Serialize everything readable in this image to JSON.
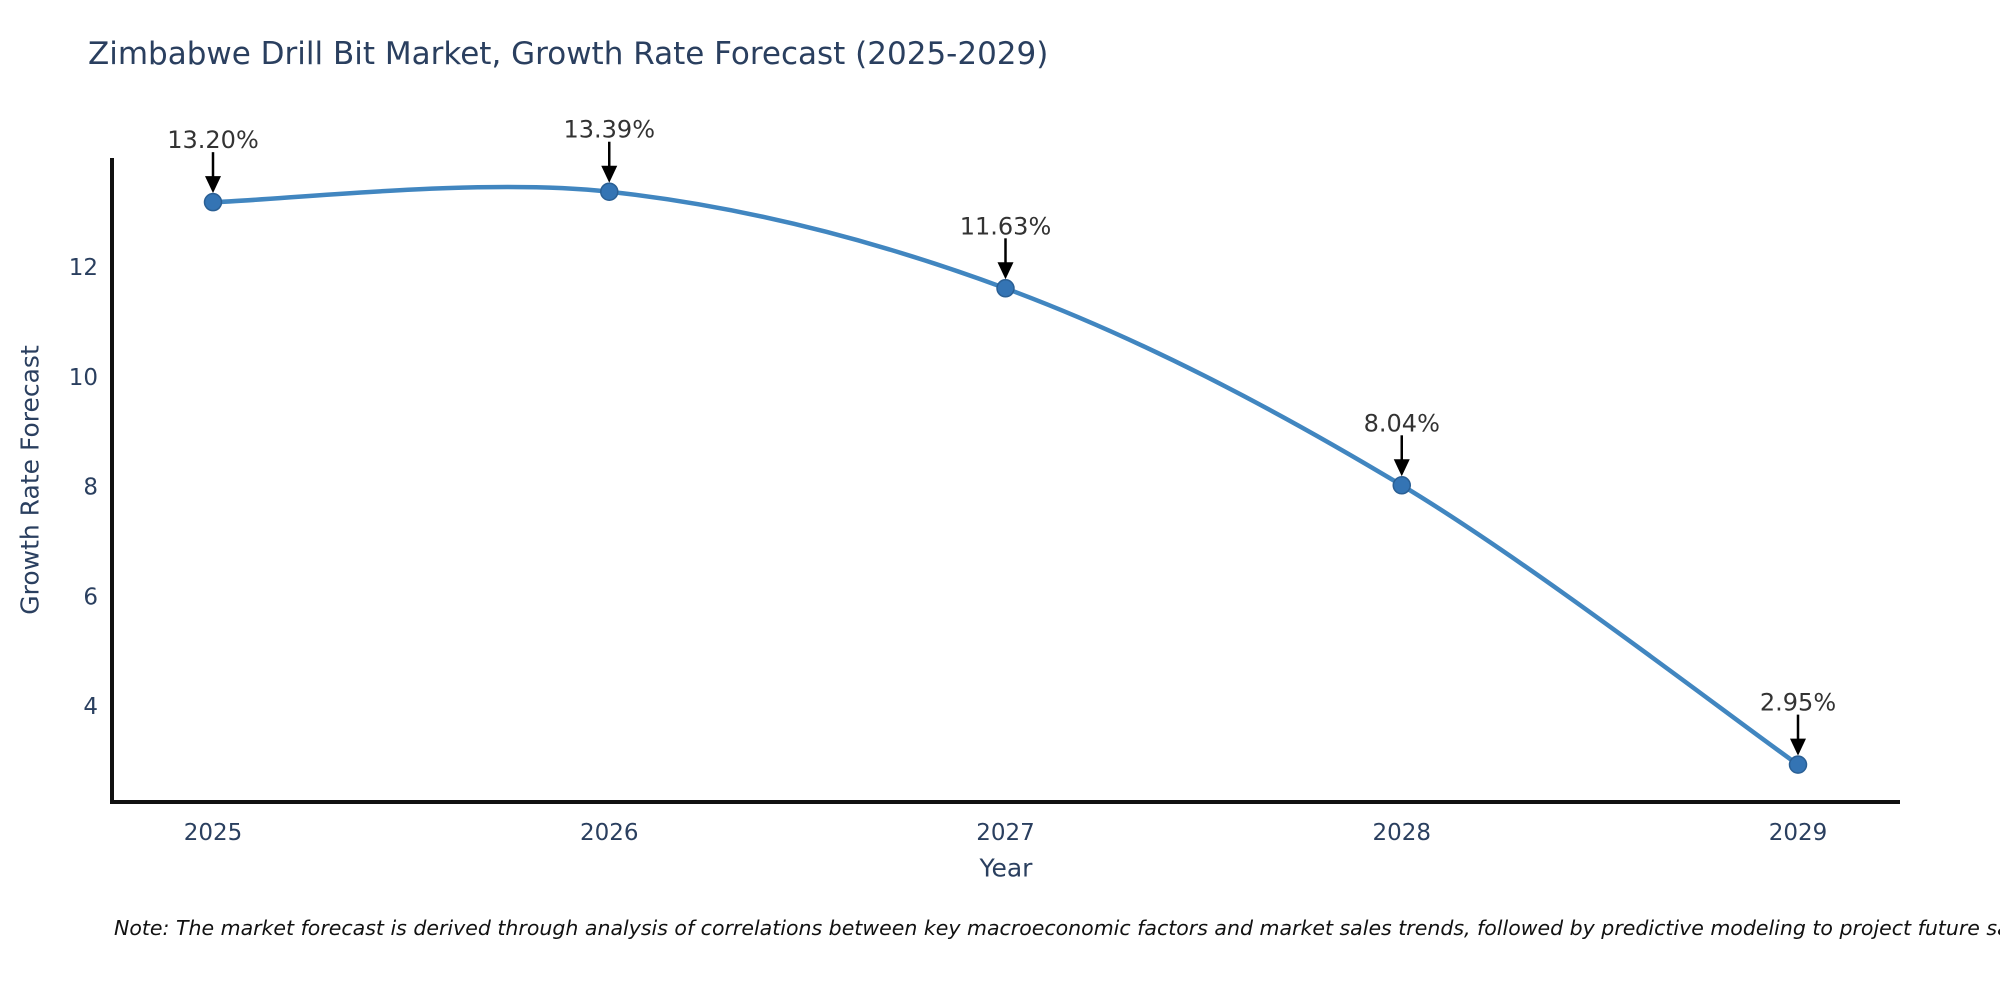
{
  "title": "Zimbabwe Drill Bit Market, Growth Rate Forecast (2025-2029)",
  "note": "Note: The market forecast is derived through analysis of correlations between key macroeconomic factors and market sales trends, followed by predictive modeling to project future sales",
  "chart_data": {
    "type": "line",
    "line_shape": "spline",
    "title": "Zimbabwe Drill Bit Market, Growth Rate Forecast (2025-2029)",
    "xlabel": "Year",
    "ylabel": "Growth Rate Forecast",
    "x": [
      2025,
      2026,
      2027,
      2028,
      2029
    ],
    "series": [
      {
        "name": "Growth Rate Forecast",
        "values": [
          13.2,
          13.39,
          11.63,
          8.04,
          2.95
        ]
      }
    ],
    "point_labels": [
      "13.20%",
      "13.39%",
      "11.63%",
      "8.04%",
      "2.95%"
    ],
    "annotation_arrow": "down",
    "yticks": [
      4,
      6,
      8,
      10,
      12
    ],
    "ylim": [
      2.3,
      14.0
    ],
    "grid": false,
    "legend": "none",
    "colors": {
      "line": "#4186c0",
      "marker": "#3474b4",
      "marker_edge": "#2a5f94",
      "axis": "#111111",
      "axis_text": "#2a3f5f",
      "annotation_text": "#333333",
      "arrow": "#000000",
      "background": "#ffffff"
    }
  }
}
